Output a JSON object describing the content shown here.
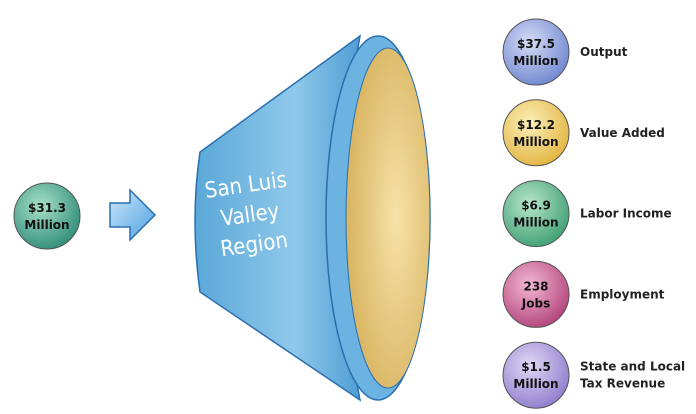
{
  "input": {
    "amount": "$31.3",
    "unit": "Million"
  },
  "region": {
    "lines": [
      "San Luis",
      "Valley",
      "Region"
    ]
  },
  "outputs": [
    {
      "amount": "$37.5",
      "unit": "Million",
      "label": [
        "Output"
      ]
    },
    {
      "amount": "$12.2",
      "unit": "Million",
      "label": [
        "Value Added"
      ]
    },
    {
      "amount": "$6.9",
      "unit": "Million",
      "label": [
        "Labor Income"
      ]
    },
    {
      "amount": "238",
      "unit": "Jobs",
      "label": [
        "Employment"
      ]
    },
    {
      "amount": "$1.5",
      "unit": "Million",
      "label": [
        "State and Local",
        "Tax Revenue"
      ]
    }
  ]
}
